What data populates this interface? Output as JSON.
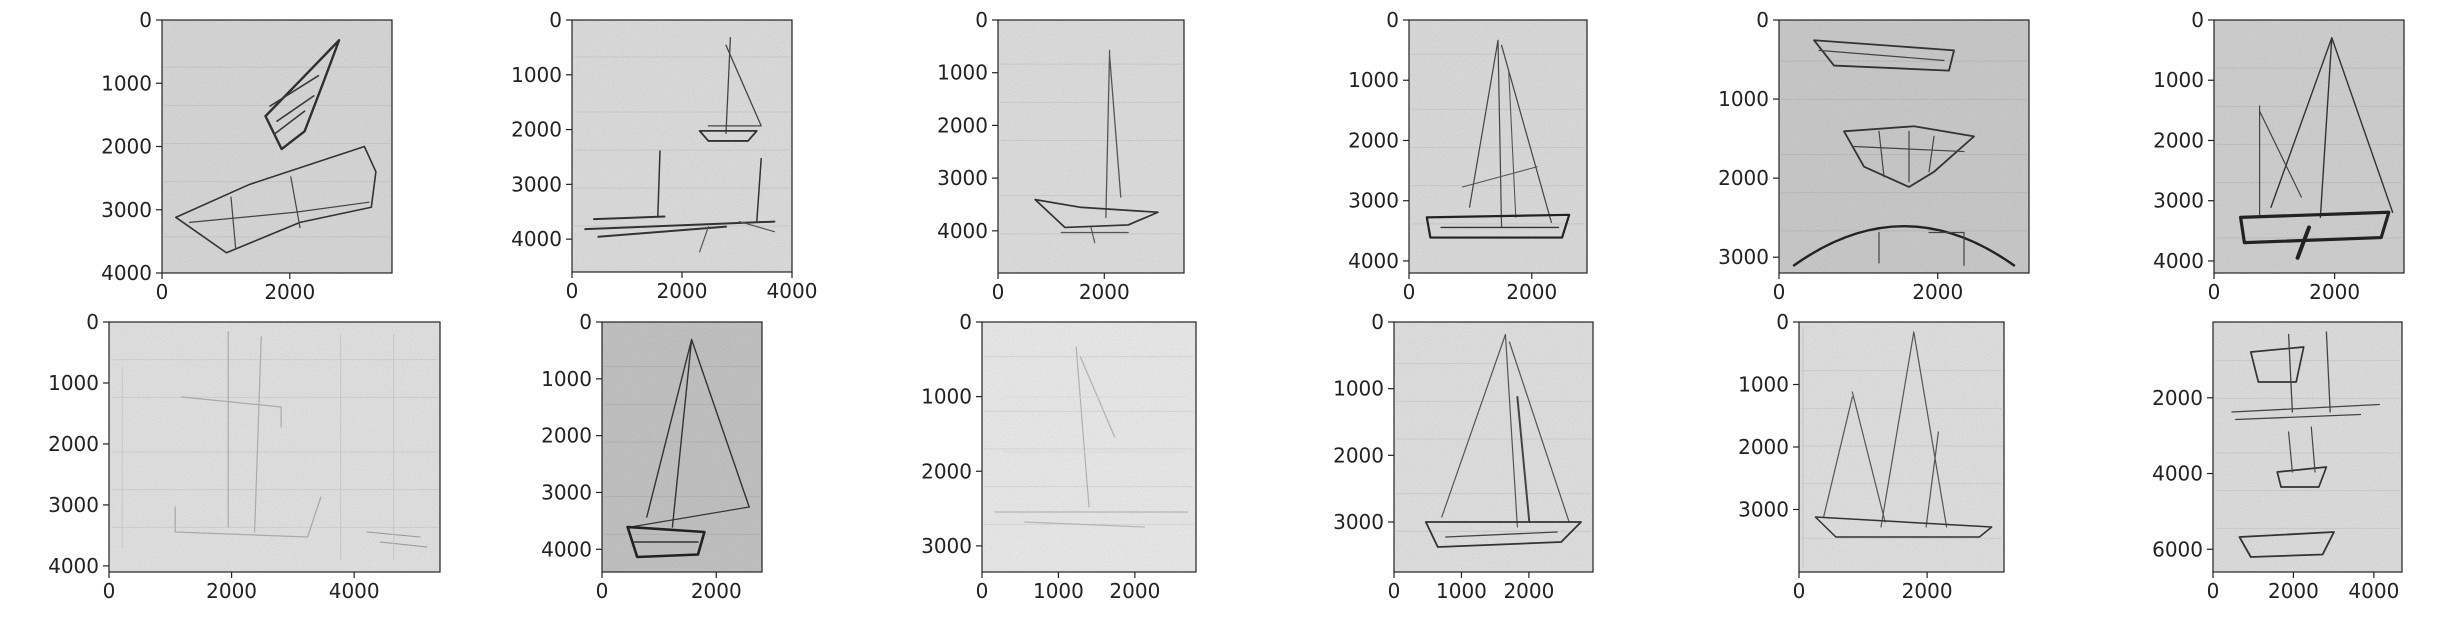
{
  "chart_data": [
    {
      "type": "image",
      "subject": "two rowboats sketch",
      "xticks": [
        0,
        2000
      ],
      "yticks": [
        0,
        1000,
        2000,
        3000,
        4000
      ],
      "xlim": [
        0,
        3600
      ],
      "ylim": [
        4000,
        0
      ]
    },
    {
      "type": "image",
      "subject": "two sailboats sketch",
      "xticks": [
        0,
        2000,
        4000
      ],
      "yticks": [
        0,
        1000,
        2000,
        3000,
        4000
      ],
      "xlim": [
        0,
        4000
      ],
      "ylim": [
        4600,
        0
      ]
    },
    {
      "type": "image",
      "subject": "sailboat mast sketch",
      "xticks": [
        0,
        2000
      ],
      "yticks": [
        0,
        1000,
        2000,
        3000,
        4000
      ],
      "xlim": [
        0,
        3500
      ],
      "ylim": [
        4800,
        0
      ]
    },
    {
      "type": "image",
      "subject": "sailboat sketch",
      "xticks": [
        0,
        2000
      ],
      "yticks": [
        0,
        1000,
        2000,
        3000,
        4000
      ],
      "xlim": [
        0,
        2900
      ],
      "ylim": [
        4200,
        0
      ]
    },
    {
      "type": "image",
      "subject": "three hull sketches",
      "xticks": [
        0,
        2000
      ],
      "yticks": [
        0,
        1000,
        2000,
        3000
      ],
      "xlim": [
        0,
        3150
      ],
      "ylim": [
        3200,
        0
      ]
    },
    {
      "type": "image",
      "subject": "sailboat with dark hull",
      "xticks": [
        0,
        2000
      ],
      "yticks": [
        0,
        1000,
        2000,
        3000,
        4000
      ],
      "xlim": [
        0,
        3150
      ],
      "ylim": [
        4200,
        0
      ]
    },
    {
      "type": "image",
      "subject": "faint sailboat sketch",
      "xticks": [
        0,
        2000,
        4000
      ],
      "yticks": [
        0,
        1000,
        2000,
        3000,
        4000
      ],
      "xlim": [
        0,
        5400
      ],
      "ylim": [
        4100,
        0
      ]
    },
    {
      "type": "image",
      "subject": "sailboat on dark paper",
      "xticks": [
        0,
        2000
      ],
      "yticks": [
        0,
        1000,
        2000,
        3000,
        4000
      ],
      "xlim": [
        0,
        2800
      ],
      "ylim": [
        4400,
        0
      ]
    },
    {
      "type": "image",
      "subject": "very faint sailboat sketch",
      "xticks": [
        0,
        1000,
        2000
      ],
      "yticks": [
        0,
        1000,
        2000,
        3000
      ],
      "xlim": [
        0,
        2800
      ],
      "ylim": [
        3350,
        0
      ]
    },
    {
      "type": "image",
      "subject": "sailboat line sketch",
      "xticks": [
        0,
        1000,
        2000
      ],
      "yticks": [
        0,
        1000,
        2000,
        3000
      ],
      "xlim": [
        0,
        2950
      ],
      "ylim": [
        3750,
        0
      ]
    },
    {
      "type": "image",
      "subject": "two sailboats line sketch",
      "xticks": [
        0,
        2000
      ],
      "yticks": [
        0,
        1000,
        2000,
        3000
      ],
      "xlim": [
        0,
        3200
      ],
      "ylim": [
        4000,
        0
      ]
    },
    {
      "type": "image",
      "subject": "stacked boat sketches",
      "xticks": [
        0,
        2000,
        4000
      ],
      "yticks": [
        2000,
        4000,
        6000
      ],
      "xlim": [
        0,
        4700
      ],
      "ylim": [
        6600,
        0
      ]
    }
  ]
}
